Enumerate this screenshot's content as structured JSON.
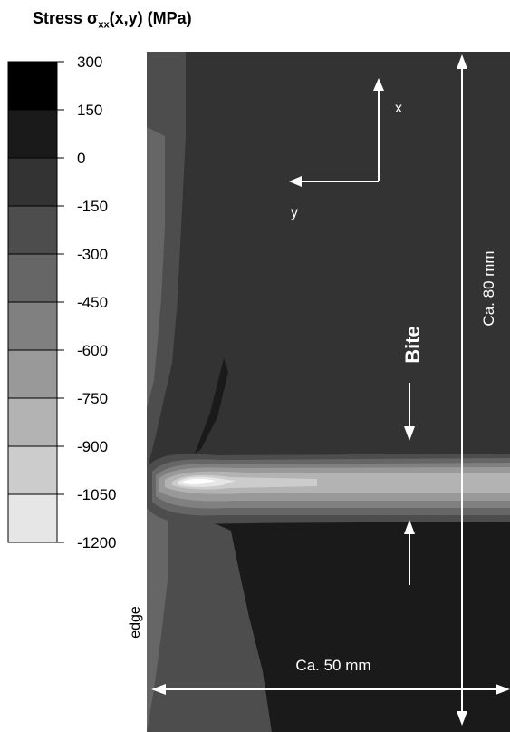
{
  "title": {
    "prefix": "Stress σ",
    "subscript": "xx",
    "suffix": "(x,y) (MPa)"
  },
  "legend": {
    "ticks": [
      "300",
      "150",
      "0",
      "-150",
      "-300",
      "-450",
      "-600",
      "-750",
      "-900",
      "-1050",
      "-1200"
    ],
    "band_colors": [
      "#000000",
      "#1a1a1a",
      "#333333",
      "#4d4d4d",
      "#666666",
      "#808080",
      "#999999",
      "#b3b3b3",
      "#cccccc",
      "#e6e6e6"
    ]
  },
  "axes": {
    "x_label": "x",
    "y_label": "y"
  },
  "annotations": {
    "bite": "Bite",
    "length_label": "Ca. 80 mm",
    "width_label": "Ca. 50 mm",
    "edge": "edge"
  }
}
